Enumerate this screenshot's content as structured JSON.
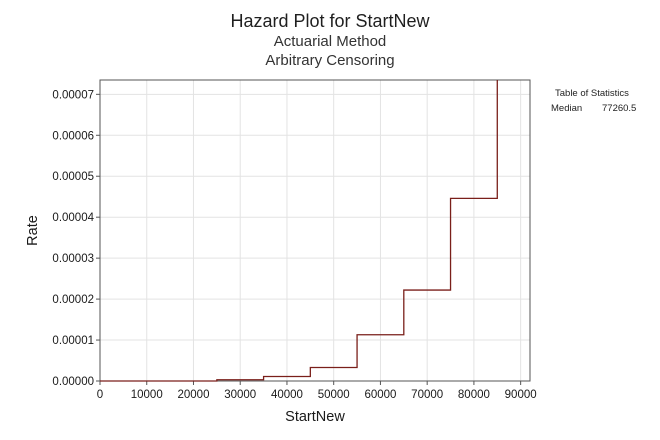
{
  "chart_title": "Hazard Plot for StartNew",
  "subtitle_1": "Actuarial Method",
  "subtitle_2": "Arbitrary Censoring",
  "stats_table": {
    "heading": "Table of Statistics",
    "rows": [
      {
        "label": "Median",
        "value": "77260.5"
      }
    ]
  },
  "colors": {
    "line": "#7a1f1a",
    "grid": "#e3e3e3",
    "axis": "#555555"
  },
  "chart_data": {
    "type": "line",
    "step": true,
    "title": "Hazard Plot for StartNew",
    "subtitle": [
      "Actuarial Method",
      "Arbitrary Censoring"
    ],
    "xlabel": "StartNew",
    "ylabel": "Rate",
    "xlim": [
      0,
      92000
    ],
    "ylim": [
      0,
      7.35e-05
    ],
    "x_ticks": [
      0,
      10000,
      20000,
      30000,
      40000,
      50000,
      60000,
      70000,
      80000,
      90000
    ],
    "x_tick_labels": [
      "0",
      "10000",
      "20000",
      "30000",
      "40000",
      "50000",
      "60000",
      "70000",
      "80000",
      "90000"
    ],
    "y_ticks": [
      0,
      1e-05,
      2e-05,
      3e-05,
      4e-05,
      5e-05,
      6e-05,
      7e-05
    ],
    "y_tick_labels": [
      "0.00000",
      "0.00001",
      "0.00002",
      "0.00003",
      "0.00004",
      "0.00005",
      "0.00006",
      "0.00007"
    ],
    "grid": true,
    "series": [
      {
        "color": "#7a1f1a",
        "points": [
          {
            "x_start": 0,
            "x_end": 25000,
            "y": 0.0
          },
          {
            "x_start": 25000,
            "x_end": 35000,
            "y": 3e-07
          },
          {
            "x_start": 35000,
            "x_end": 45000,
            "y": 1.1e-06
          },
          {
            "x_start": 45000,
            "x_end": 55000,
            "y": 3.3e-06
          },
          {
            "x_start": 55000,
            "x_end": 65000,
            "y": 1.13e-05
          },
          {
            "x_start": 65000,
            "x_end": 75000,
            "y": 2.22e-05
          },
          {
            "x_start": 75000,
            "x_end": 85000,
            "y": 4.46e-05
          },
          {
            "x_start": 85000,
            "x_end": 85000,
            "y": 7.35e-05
          }
        ]
      }
    ]
  }
}
